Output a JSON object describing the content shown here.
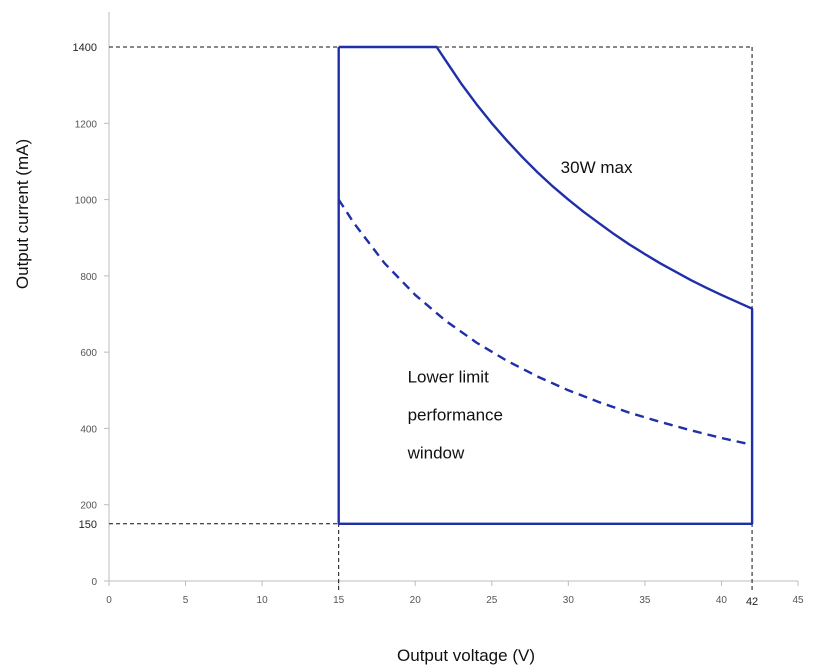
{
  "chart_data": {
    "type": "line",
    "title": "",
    "xlabel": "Output voltage (V)",
    "ylabel": "Output current (mA)",
    "xlim": [
      0,
      45
    ],
    "ylim": [
      0,
      1400
    ],
    "x_ticks": [
      0,
      5,
      10,
      15,
      20,
      25,
      30,
      35,
      40,
      45
    ],
    "y_ticks": [
      0,
      200,
      400,
      600,
      800,
      1000,
      1200
    ],
    "x_ref_ticks": [
      42
    ],
    "y_ref_ticks": [
      150,
      1400
    ],
    "grid": false,
    "reference_lines": [
      {
        "axis": "y",
        "value": 1400,
        "style": "dashed"
      },
      {
        "axis": "y",
        "value": 150,
        "style": "dashed"
      },
      {
        "axis": "x",
        "value": 15,
        "style": "dashed"
      },
      {
        "axis": "x",
        "value": 42,
        "style": "dashed"
      }
    ],
    "series": [
      {
        "style": "solid",
        "color": "#1f2fa8",
        "x": [
          15,
          21.4,
          22,
          23,
          24,
          25,
          26,
          27,
          28,
          29,
          30,
          31,
          32,
          33,
          34,
          35,
          36,
          37,
          38,
          39,
          40,
          41,
          42,
          42,
          15,
          15
        ],
        "y": [
          1400,
          1400,
          1364,
          1304,
          1250,
          1200,
          1154,
          1111,
          1071,
          1034,
          1000,
          968,
          938,
          909,
          882,
          857,
          833,
          811,
          789,
          769,
          750,
          732,
          714,
          150,
          150,
          1400
        ]
      },
      {
        "style": "dashed",
        "color": "#1f2fa8",
        "x": [
          15,
          16,
          18,
          20,
          22,
          24,
          26,
          28,
          30,
          32,
          34,
          36,
          38,
          40,
          42
        ],
        "y": [
          1000,
          938,
          833,
          750,
          682,
          625,
          577,
          536,
          500,
          469,
          441,
          417,
          395,
          375,
          357
        ]
      }
    ],
    "annotations": [
      {
        "text": "30W max",
        "x": 29.5,
        "y": 1070
      },
      {
        "lines": [
          "Lower limit",
          "performance",
          "window"
        ],
        "x": 19.5,
        "y": 520
      }
    ]
  }
}
